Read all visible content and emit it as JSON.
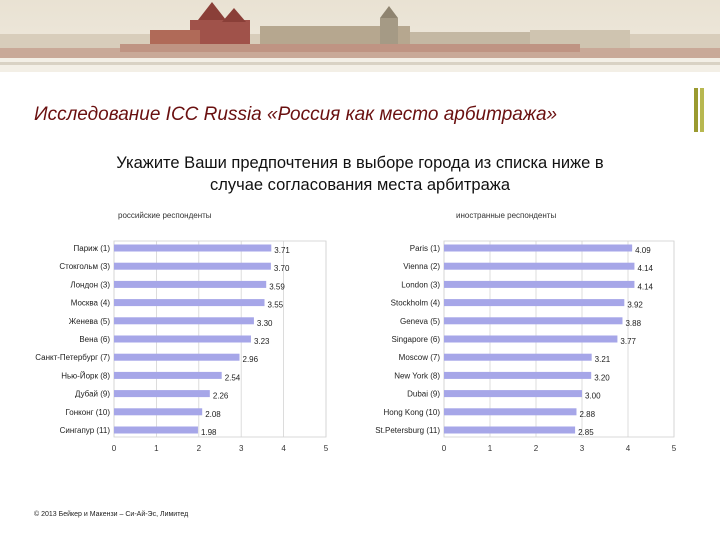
{
  "page_title": "Исследование ICC Russia «Россия как место арбитража»",
  "subtitle_line1": "Укажите Ваши предпочтения в выборе города из списка ниже в",
  "subtitle_line2": "случае согласования места арбитража",
  "footer": "© 2013 Бейкер и Макензи – Си-Ай-Эс, Лимитед",
  "colors": {
    "bar": "#a6a6e8",
    "title": "#6a1010",
    "accent": "#9a9a30"
  },
  "chart_data": [
    {
      "type": "bar",
      "orientation": "horizontal",
      "title": "российские респонденты",
      "categories": [
        "Париж (1)",
        "Стокгольм (3)",
        "Лондон (3)",
        "Москва (4)",
        "Женева (5)",
        "Вена (6)",
        "Санкт-Петербург (7)",
        "Нью-Йорк (8)",
        "Дубай (9)",
        "Гонконг (10)",
        "Сингапур (11)"
      ],
      "values": [
        3.71,
        3.7,
        3.59,
        3.55,
        3.3,
        3.23,
        2.96,
        2.54,
        2.26,
        2.08,
        1.98
      ],
      "value_labels": [
        "3.71",
        "3.70",
        "3.59",
        "3.55",
        "3.30",
        "3.23",
        "2.96",
        "2.54",
        "2.26",
        "2.08",
        "1.98"
      ],
      "xlim": [
        0,
        5
      ],
      "xticks": [
        "0",
        "1",
        "2",
        "3",
        "4",
        "5"
      ],
      "grid": true
    },
    {
      "type": "bar",
      "orientation": "horizontal",
      "title": "иностранные респонденты",
      "categories": [
        "Paris (1)",
        "Vienna (2)",
        "London (3)",
        "Stockholm (4)",
        "Geneva (5)",
        "Singapore (6)",
        "Moscow (7)",
        "New York (8)",
        "Dubai (9)",
        "Hong Kong (10)",
        "St.Petersburg (11)"
      ],
      "values": [
        4.09,
        4.14,
        4.14,
        3.92,
        3.88,
        3.77,
        3.21,
        3.2,
        3.0,
        2.88,
        2.85
      ],
      "value_labels": [
        "4.09",
        "4.14",
        "4.14",
        "3.92",
        "3.88",
        "3.77",
        "3.21",
        "3.20",
        "3.00",
        "2.88",
        "2.85"
      ],
      "xlim": [
        0,
        5
      ],
      "xticks": [
        "0",
        "1",
        "2",
        "3",
        "4",
        "5"
      ],
      "grid": true
    }
  ]
}
